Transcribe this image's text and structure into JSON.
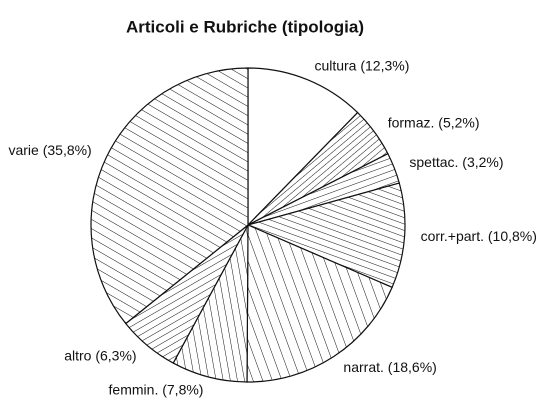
{
  "chart_data": {
    "type": "pie",
    "title": "Articoli e Rubriche (tipologia)",
    "categories": [
      "cultura",
      "formaz.",
      "spettac.",
      "corr.+part.",
      "narrat.",
      "femmin.",
      "altro",
      "varie"
    ],
    "values": [
      12.3,
      5.2,
      3.2,
      10.8,
      18.6,
      7.8,
      6.3,
      35.8
    ],
    "value_labels": [
      "(12,3%)",
      "(5,2%)",
      "(3,2%)",
      "(10,8%)",
      "(18,6%)",
      "(7,8%)",
      "(6,3%)",
      "(35,8%)"
    ]
  }
}
